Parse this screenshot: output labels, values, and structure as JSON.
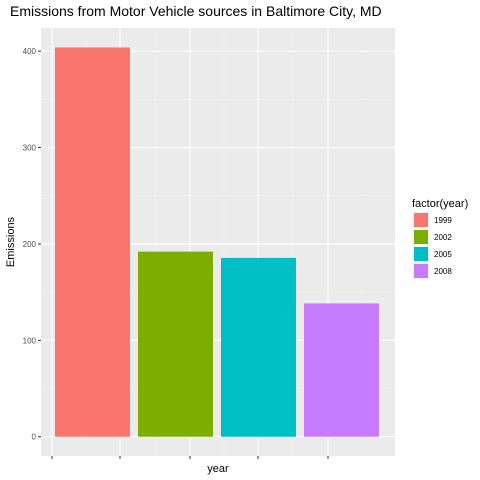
{
  "chart_data": {
    "type": "bar",
    "title": "Emissions from Motor Vehicle sources in Baltimore City, MD",
    "xlabel": "year",
    "ylabel": "Emissions",
    "categories": [
      "1999",
      "2002",
      "2005",
      "2008"
    ],
    "values": [
      403.8,
      192.0,
      185.5,
      138.3
    ],
    "ylim": [
      -20,
      424
    ],
    "yticks": [
      0,
      100,
      200,
      300,
      400
    ],
    "xtick_labels": [],
    "grid": true,
    "legend": {
      "title": "factor(year)",
      "position": "right",
      "entries": [
        "1999",
        "2002",
        "2005",
        "2008"
      ]
    },
    "colors": {
      "1999": "#F8766D",
      "2002": "#7CAE00",
      "2005": "#00BFC4",
      "2008": "#C77CFF",
      "panel_background": "#EBEBEB"
    }
  }
}
